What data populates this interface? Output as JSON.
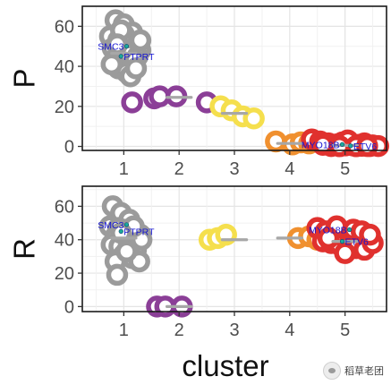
{
  "chart_data": {
    "type": "scatter",
    "xlabel": "cluster",
    "categories": [
      "1",
      "2",
      "3",
      "4",
      "5"
    ],
    "xlim": [
      0.25,
      5.75
    ],
    "grid": true,
    "colors": {
      "1": "#9b9b9b",
      "2": "#8b3f97",
      "3": "#f5df4d",
      "4": "#f0902f",
      "5": "#e0312e"
    },
    "label_color": "#1414d2",
    "median_color": "#a7a7a7",
    "panels": [
      {
        "ylabel": "P",
        "ylim": [
          -2,
          70
        ],
        "yticks": [
          0,
          20,
          40,
          60
        ],
        "clusters": [
          {
            "cluster": "1",
            "median": 46.5,
            "points": [
              [
                0.85,
                63
              ],
              [
                1.0,
                61
              ],
              [
                1.15,
                57
              ],
              [
                0.75,
                55
              ],
              [
                0.9,
                53
              ],
              [
                1.05,
                52
              ],
              [
                1.2,
                51
              ],
              [
                1.3,
                48
              ],
              [
                0.8,
                49
              ],
              [
                0.95,
                47
              ],
              [
                1.1,
                46
              ],
              [
                1.25,
                45
              ],
              [
                0.85,
                44
              ],
              [
                1.0,
                42
              ],
              [
                1.15,
                41
              ],
              [
                0.9,
                39
              ],
              [
                1.05,
                37
              ],
              [
                1.2,
                43
              ],
              [
                0.78,
                41
              ],
              [
                1.3,
                53
              ],
              [
                1.0,
                56
              ],
              [
                1.12,
                35
              ],
              [
                0.95,
                58
              ],
              [
                1.22,
                39
              ],
              [
                0.88,
                51
              ]
            ]
          },
          {
            "cluster": "2",
            "median": 24.5,
            "points": [
              [
                1.15,
                22
              ],
              [
                1.55,
                24
              ],
              [
                1.65,
                25
              ],
              [
                1.95,
                25
              ],
              [
                2.5,
                22
              ]
            ]
          },
          {
            "cluster": "3",
            "median": 16.5,
            "points": [
              [
                2.75,
                20
              ],
              [
                2.95,
                18
              ],
              [
                3.15,
                15
              ],
              [
                3.35,
                14
              ]
            ]
          },
          {
            "cluster": "4",
            "median": 1.5,
            "points": [
              [
                3.75,
                2.5
              ],
              [
                4.05,
                1
              ],
              [
                4.2,
                2
              ],
              [
                4.35,
                1.5
              ]
            ]
          },
          {
            "cluster": "5",
            "median": 0.5,
            "points": [
              [
                4.4,
                3.5
              ],
              [
                4.55,
                2.5
              ],
              [
                4.7,
                1.5
              ],
              [
                4.85,
                1
              ],
              [
                5.0,
                0.5
              ],
              [
                5.15,
                0.5
              ],
              [
                5.3,
                0.3
              ],
              [
                5.45,
                0.2
              ],
              [
                4.75,
                0.2
              ],
              [
                4.95,
                2
              ],
              [
                5.1,
                1
              ],
              [
                5.25,
                0.8
              ],
              [
                5.35,
                1.5
              ],
              [
                5.5,
                0.5
              ],
              [
                5.6,
                0.2
              ],
              [
                4.6,
                0.8
              ],
              [
                5.05,
                3
              ],
              [
                4.9,
                0.1
              ],
              [
                5.2,
                0.1
              ],
              [
                5.4,
                0.2
              ]
            ]
          }
        ],
        "labels": [
          {
            "text": "SMC3",
            "x": 1.05,
            "y": 50,
            "side": "left"
          },
          {
            "text": "PTPRT",
            "x": 0.95,
            "y": 45,
            "side": "right"
          },
          {
            "text": "MYO18B",
            "x": 4.95,
            "y": 1,
            "side": "left"
          },
          {
            "text": "ETV6",
            "x": 5.1,
            "y": 0.3,
            "side": "right"
          }
        ]
      },
      {
        "ylabel": "R",
        "ylim": [
          -3,
          72
        ],
        "yticks": [
          0,
          20,
          40,
          60
        ],
        "clusters": [
          {
            "cluster": "1",
            "median": 41,
            "points": [
              [
                0.8,
                60
              ],
              [
                0.95,
                56
              ],
              [
                1.1,
                52
              ],
              [
                0.75,
                48
              ],
              [
                0.9,
                47
              ],
              [
                1.05,
                46
              ],
              [
                1.2,
                45
              ],
              [
                1.3,
                43
              ],
              [
                0.85,
                42
              ],
              [
                1.0,
                41
              ],
              [
                1.15,
                40
              ],
              [
                1.25,
                38
              ],
              [
                0.78,
                37
              ],
              [
                0.92,
                36
              ],
              [
                1.08,
                35
              ],
              [
                1.22,
                34
              ],
              [
                1.32,
                40
              ],
              [
                1.0,
                31
              ],
              [
                1.15,
                29
              ],
              [
                1.28,
                27
              ],
              [
                0.85,
                27
              ],
              [
                0.88,
                19
              ],
              [
                1.05,
                33
              ],
              [
                1.18,
                48
              ],
              [
                0.95,
                44
              ]
            ]
          },
          {
            "cluster": "2",
            "median": 0,
            "points": [
              [
                1.6,
                0
              ],
              [
                1.75,
                0
              ],
              [
                2.05,
                0
              ]
            ]
          },
          {
            "cluster": "3",
            "median": 40,
            "points": [
              [
                2.55,
                40
              ],
              [
                2.7,
                41
              ],
              [
                2.85,
                43
              ]
            ]
          },
          {
            "cluster": "4",
            "median": 41,
            "points": [
              [
                4.15,
                41
              ],
              [
                4.35,
                42
              ],
              [
                4.5,
                40
              ]
            ]
          },
          {
            "cluster": "5",
            "median": 39,
            "points": [
              [
                4.5,
                47
              ],
              [
                4.65,
                45
              ],
              [
                4.8,
                44
              ],
              [
                4.95,
                43
              ],
              [
                5.1,
                42
              ],
              [
                5.25,
                41
              ],
              [
                5.4,
                40
              ],
              [
                4.6,
                39
              ],
              [
                4.75,
                38
              ],
              [
                4.9,
                37
              ],
              [
                5.05,
                36
              ],
              [
                5.2,
                35
              ],
              [
                5.35,
                34
              ],
              [
                5.5,
                38
              ],
              [
                4.85,
                48
              ],
              [
                5.15,
                46
              ],
              [
                5.3,
                45
              ],
              [
                5.0,
                32
              ],
              [
                4.7,
                41
              ],
              [
                5.45,
                43
              ]
            ]
          }
        ],
        "labels": [
          {
            "text": "SMC3",
            "x": 1.05,
            "y": 49,
            "side": "left"
          },
          {
            "text": "PTPRT",
            "x": 0.95,
            "y": 45,
            "side": "right"
          },
          {
            "text": "MYO18B",
            "x": 5.08,
            "y": 46,
            "side": "left"
          },
          {
            "text": "ETV6",
            "x": 4.95,
            "y": 39,
            "side": "right"
          }
        ]
      }
    ]
  },
  "watermark": {
    "text": "稻草老团"
  }
}
